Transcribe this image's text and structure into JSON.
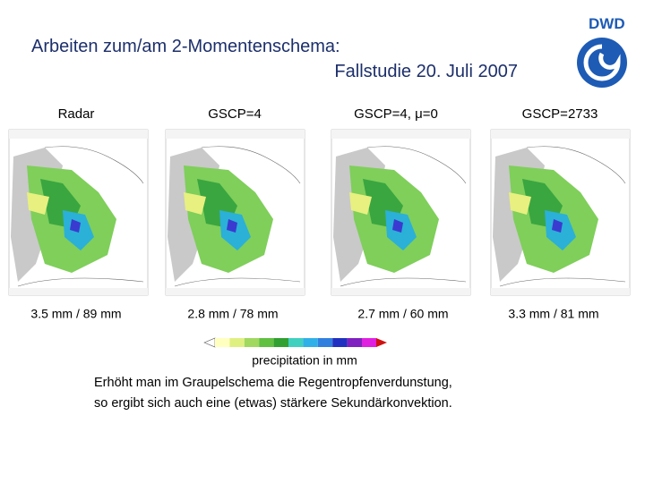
{
  "header": {
    "title_line1": "Arbeiten zum/am 2-Momentenschema:",
    "title_line2": "Fallstudie 20. Juli 2007",
    "logo": "DWD"
  },
  "panels": [
    {
      "label": "Radar",
      "stats": "3.5 mm / 89 mm"
    },
    {
      "label": "GSCP=4",
      "stats": "2.8 mm / 78 mm"
    },
    {
      "label": "GSCP=4, μ=0",
      "stats": "2.7 mm / 60 mm"
    },
    {
      "label": "GSCP=2733",
      "stats": "3.3 mm / 81 mm"
    }
  ],
  "colorbar": {
    "label": "precipitation in mm"
  },
  "conclusion": {
    "line1": "Erhöht man im Graupelschema die Regentropfenverdunstung,",
    "line2": "so ergibt sich auch eine (etwas) stärkere Sekundärkonvektion."
  }
}
